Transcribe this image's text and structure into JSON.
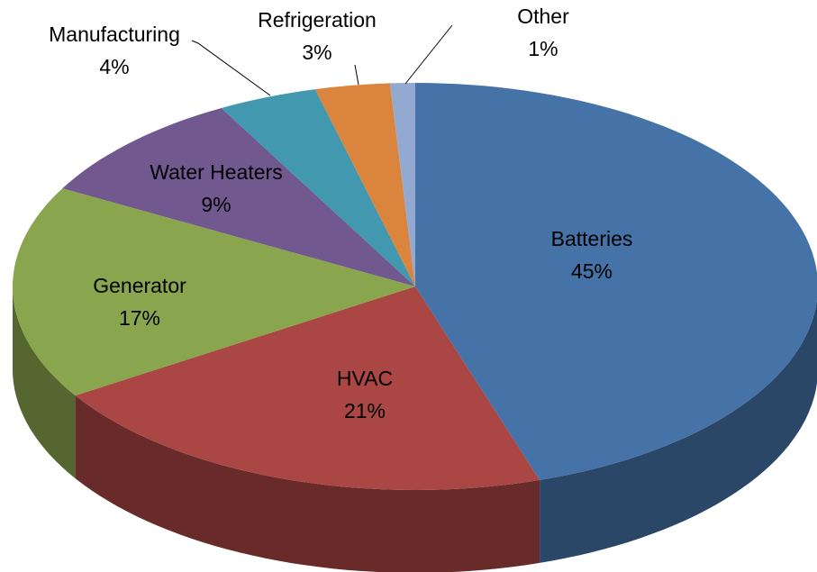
{
  "chart_data": {
    "type": "pie3d",
    "categories": [
      "Batteries",
      "HVAC",
      "Generator",
      "Water Heaters",
      "Manufacturing",
      "Refrigeration",
      "Other"
    ],
    "values": [
      45,
      21,
      17,
      9,
      4,
      3,
      1
    ],
    "value_labels": [
      "45%",
      "21%",
      "17%",
      "9%",
      "4%",
      "3%",
      "1%"
    ],
    "colors": [
      "#4572a7",
      "#aa4643",
      "#89a54e",
      "#71588f",
      "#4198af",
      "#db843d",
      "#93a9cf"
    ]
  }
}
